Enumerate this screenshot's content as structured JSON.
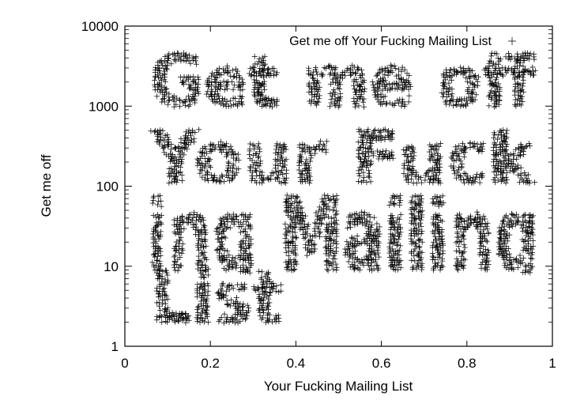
{
  "chart_data": {
    "type": "scatter",
    "title": "",
    "xlabel": "Your Fucking Mailing List",
    "ylabel": "Get me off",
    "xlim": [
      0,
      1
    ],
    "ylim": [
      1,
      10000
    ],
    "yscale": "log",
    "grid": false,
    "legend_position": "top-right",
    "x_ticks": [
      {
        "value": 0,
        "label": "0"
      },
      {
        "value": 0.2,
        "label": "0.2"
      },
      {
        "value": 0.4,
        "label": "0.4"
      },
      {
        "value": 0.6,
        "label": "0.6"
      },
      {
        "value": 0.8,
        "label": "0.8"
      },
      {
        "value": 1,
        "label": "1"
      }
    ],
    "y_ticks": [
      {
        "value": 1,
        "label": "1"
      },
      {
        "value": 10,
        "label": "10"
      },
      {
        "value": 100,
        "label": "100"
      },
      {
        "value": 1000,
        "label": "1000"
      },
      {
        "value": 10000,
        "label": "10000"
      }
    ],
    "series": [
      {
        "name": "Get me off Your Fucking Mailing List",
        "marker": "+",
        "color": "#000000",
        "note_visual": "points arranged to spell the words",
        "lines": [
          {
            "text": "Get me off",
            "x_start": 0.06,
            "x_end": 0.96,
            "y_low": 900,
            "y_high": 4500
          },
          {
            "text": "Your Fuck",
            "x_start": 0.06,
            "x_end": 0.96,
            "y_low": 100,
            "y_high": 500
          },
          {
            "text": "ing Mailing",
            "x_start": 0.05,
            "x_end": 0.97,
            "y_low": 8,
            "y_high": 75
          },
          {
            "text": "List",
            "x_start": 0.06,
            "x_end": 0.37,
            "y_low": 1.8,
            "y_high": 9
          }
        ]
      }
    ]
  }
}
